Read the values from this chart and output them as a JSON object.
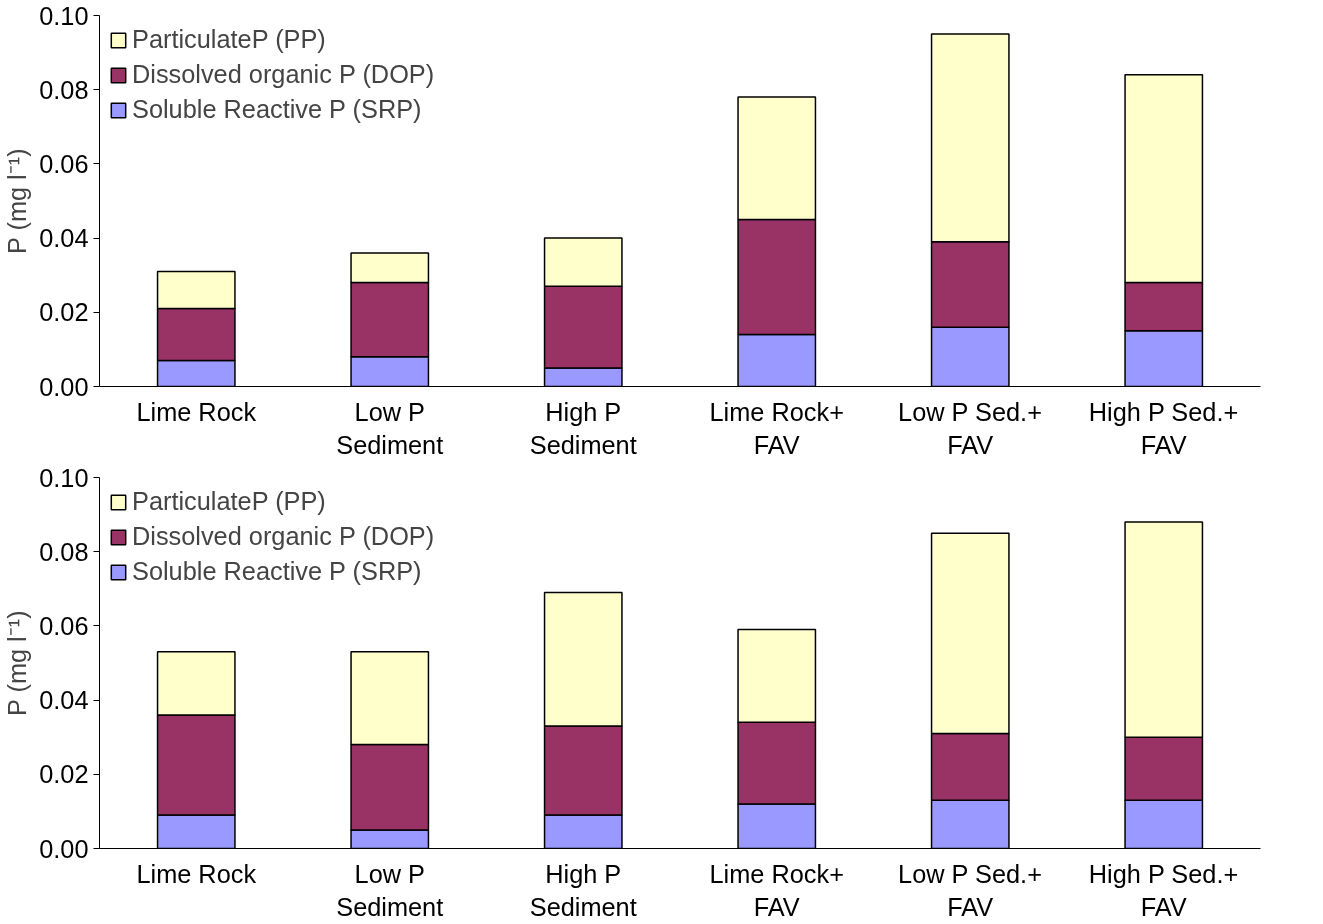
{
  "chart_data": [
    {
      "type": "bar",
      "stacked": true,
      "ylabel": "P (mg l⁻¹)",
      "categories": [
        "Lime Rock",
        "Low P\nSediment",
        "High P\nSediment",
        "Lime Rock+\nFAV",
        "Low P Sed.+\nFAV",
        "High P Sed.+\nFAV"
      ],
      "ylim": [
        0,
        0.1
      ],
      "yticks": [
        {
          "value": 0,
          "label": "0.00"
        },
        {
          "value": 0.02,
          "label": "0.02"
        },
        {
          "value": 0.04,
          "label": "0.04"
        },
        {
          "value": 0.06,
          "label": "0.06"
        },
        {
          "value": 0.08,
          "label": "0.08"
        },
        {
          "value": 0.1,
          "label": "0.10"
        }
      ],
      "grid": false,
      "legend": "top left",
      "series": [
        {
          "name": "Soluble Reactive P (SRP)",
          "color": "#9999ff",
          "values": [
            0.007,
            0.008,
            0.005,
            0.014,
            0.016,
            0.015
          ]
        },
        {
          "name": "Dissolved organic P (DOP)",
          "color": "#993366",
          "values": [
            0.014,
            0.02,
            0.022,
            0.031,
            0.023,
            0.013
          ]
        },
        {
          "name": "ParticulateP (PP)",
          "color": "#ffffcc",
          "values": [
            0.01,
            0.008,
            0.013,
            0.033,
            0.056,
            0.056
          ]
        }
      ]
    },
    {
      "type": "bar",
      "stacked": true,
      "ylabel": "P (mg l⁻¹)",
      "categories": [
        "Lime Rock",
        "Low P\nSediment",
        "High P\nSediment",
        "Lime Rock+\nFAV",
        "Low P Sed.+\nFAV",
        "High P Sed.+\nFAV"
      ],
      "ylim": [
        0,
        0.1
      ],
      "yticks": [
        {
          "value": 0,
          "label": "0.00"
        },
        {
          "value": 0.02,
          "label": "0.02"
        },
        {
          "value": 0.04,
          "label": "0.04"
        },
        {
          "value": 0.06,
          "label": "0.06"
        },
        {
          "value": 0.08,
          "label": "0.08"
        },
        {
          "value": 0.1,
          "label": "0.10"
        }
      ],
      "grid": false,
      "legend": "top left",
      "series": [
        {
          "name": "Soluble Reactive P (SRP)",
          "color": "#9999ff",
          "values": [
            0.009,
            0.005,
            0.009,
            0.012,
            0.013,
            0.013
          ]
        },
        {
          "name": "Dissolved organic P (DOP)",
          "color": "#993366",
          "values": [
            0.027,
            0.023,
            0.024,
            0.022,
            0.018,
            0.017
          ]
        },
        {
          "name": "ParticulateP (PP)",
          "color": "#ffffcc",
          "values": [
            0.017,
            0.025,
            0.036,
            0.025,
            0.054,
            0.058
          ]
        }
      ]
    }
  ]
}
